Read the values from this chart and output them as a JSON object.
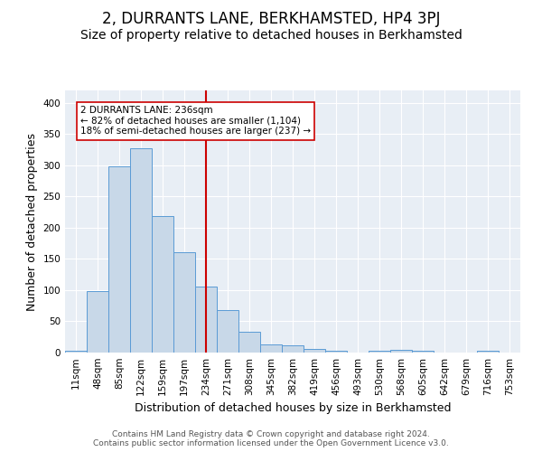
{
  "title": "2, DURRANTS LANE, BERKHAMSTED, HP4 3PJ",
  "subtitle": "Size of property relative to detached houses in Berkhamsted",
  "xlabel": "Distribution of detached houses by size in Berkhamsted",
  "ylabel": "Number of detached properties",
  "footer_line1": "Contains HM Land Registry data © Crown copyright and database right 2024.",
  "footer_line2": "Contains public sector information licensed under the Open Government Licence v3.0.",
  "bin_labels": [
    "11sqm",
    "48sqm",
    "85sqm",
    "122sqm",
    "159sqm",
    "197sqm",
    "234sqm",
    "271sqm",
    "308sqm",
    "345sqm",
    "382sqm",
    "419sqm",
    "456sqm",
    "493sqm",
    "530sqm",
    "568sqm",
    "605sqm",
    "642sqm",
    "679sqm",
    "716sqm",
    "753sqm"
  ],
  "bar_values": [
    3,
    99,
    299,
    328,
    219,
    161,
    106,
    68,
    34,
    13,
    11,
    6,
    3,
    0,
    3,
    4,
    3,
    0,
    0,
    3,
    0
  ],
  "bar_color": "#c8d8e8",
  "bar_edge_color": "#5b9bd5",
  "vline_x": 6,
  "vline_color": "#cc0000",
  "annotation_text": "2 DURRANTS LANE: 236sqm\n← 82% of detached houses are smaller (1,104)\n18% of semi-detached houses are larger (237) →",
  "annotation_box_color": "white",
  "annotation_box_edge": "#cc0000",
  "ylim": [
    0,
    420
  ],
  "yticks": [
    0,
    50,
    100,
    150,
    200,
    250,
    300,
    350,
    400
  ],
  "background_color": "#e8eef5",
  "plot_background": "#e8eef5",
  "title_fontsize": 12,
  "subtitle_fontsize": 10,
  "axis_label_fontsize": 9,
  "tick_fontsize": 7.5,
  "footer_fontsize": 6.5
}
